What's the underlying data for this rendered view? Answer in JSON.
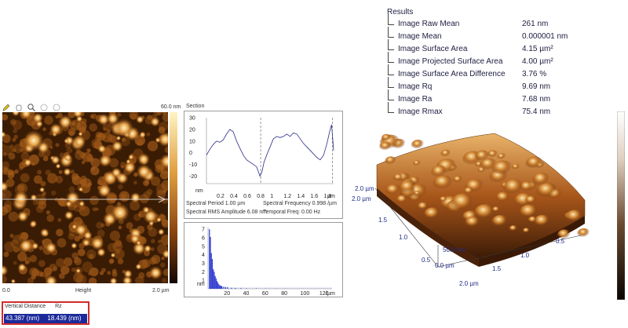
{
  "results": {
    "title": "Results",
    "rows": [
      {
        "name": "Image Raw Mean",
        "value": "261 nm"
      },
      {
        "name": "Image Mean",
        "value": "0.000001 nm"
      },
      {
        "name": "Image Surface Area",
        "value": "4.15 µm²"
      },
      {
        "name": "Image Projected Surface Area",
        "value": "4.00 µm²"
      },
      {
        "name": "Image Surface Area Difference",
        "value": "3.76 %"
      },
      {
        "name": "Image Rq",
        "value": "9.69 nm"
      },
      {
        "name": "Image Ra",
        "value": "7.68 nm"
      },
      {
        "name": "Image Rmax",
        "value": "75.4 nm"
      }
    ]
  },
  "toolbar": {
    "icons": [
      "pencil-icon",
      "hand-icon",
      "magnifier-icon",
      "zoom-in-icon",
      "zoom-out-icon"
    ]
  },
  "afm_image": {
    "scale_top": "60.0 nm",
    "x_start": "0.0",
    "x_label": "Height",
    "x_end": "2.0 µm"
  },
  "section": {
    "title": "Section",
    "y_ticks": [
      "30",
      "20",
      "10",
      "0",
      "-10",
      "-20"
    ],
    "y_unit": "nm",
    "x_ticks": [
      "0.2",
      "0.4",
      "0.6",
      "0.8",
      "1",
      "1.2",
      "1.4",
      "1.6",
      "1.8"
    ],
    "x_unit": "µm",
    "spectral_period": "Spectral Period 1.00 µm",
    "spectral_frequency": "Spectral Frequency 0.998 /µm",
    "spectral_rms": "Spectral RMS Amplitude 6.08 nm",
    "temporal_freq": "Temporal Freq: 0.00 Hz"
  },
  "spectrum": {
    "y_ticks": [
      "7",
      "6",
      "5",
      "4",
      "3",
      "2",
      "1"
    ],
    "y_unit": "nm",
    "x_ticks": [
      "20",
      "40",
      "60",
      "80",
      "100",
      "120"
    ],
    "x_unit": "/µm"
  },
  "vertical": {
    "label1": "Vertical Distance",
    "label2": "Rz",
    "value1": "43.387 (nm)",
    "value2": "18.439 (nm)"
  },
  "view3d": {
    "labels": [
      "2.0 µm",
      "2.0 µm",
      "1.5",
      "1.0",
      "0.5",
      "0.0 µm",
      "50.0 nm",
      "0.5",
      "1.0",
      "1.5",
      "2.0 µm"
    ]
  },
  "colors": {
    "afm_dark": "#3a1c04",
    "afm_mid": "#a35a18",
    "afm_light": "#ffe7a0",
    "trace": "#2a2a8a",
    "dashed": "#555555",
    "highlight": "#d22b2b",
    "selection": "#1b2a9a"
  }
}
